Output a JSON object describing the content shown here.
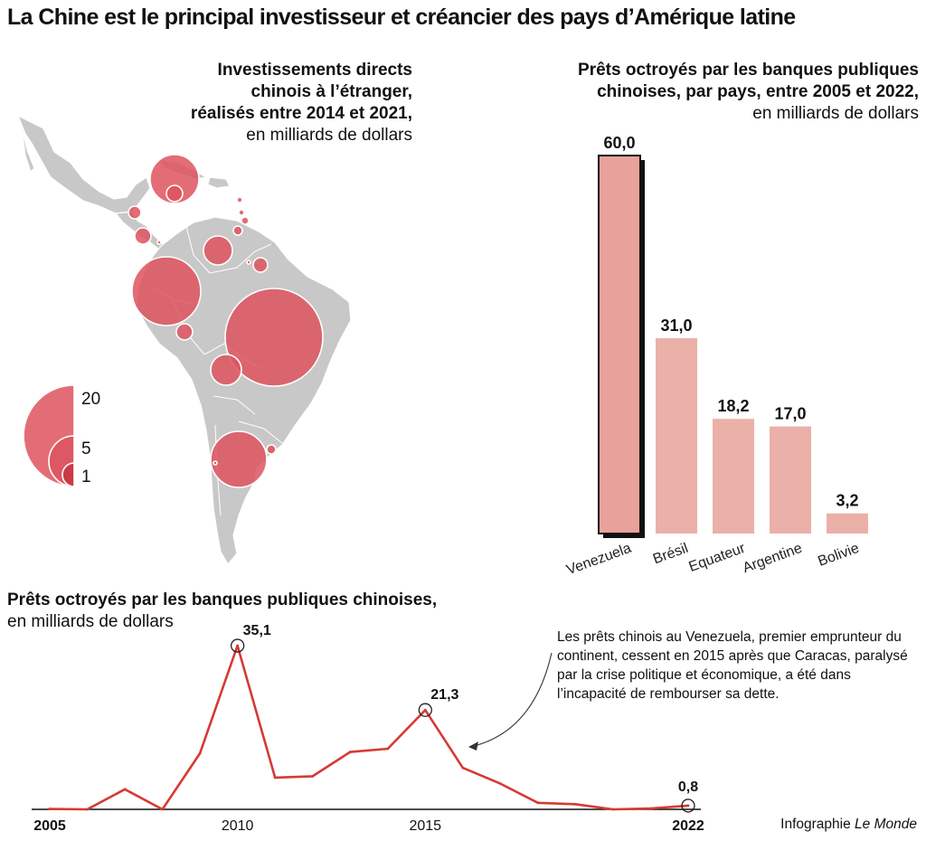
{
  "title": "La Chine est le principal investisseur et créancier des pays d’Amérique latine",
  "map": {
    "title_bold": [
      "Investissements directs",
      "chinois à l’étranger,",
      "réalisés entre 2014 et 2021,"
    ],
    "title_normal": "en milliards de dollars",
    "legend": [
      "20",
      "5",
      "1"
    ],
    "colors": {
      "land": "#c8c8c8",
      "bubble": "#dd5560"
    }
  },
  "bar_section": {
    "title_bold": [
      "Prêts octroyés par les banques publiques",
      "chinoises, par pays, entre 2005 et 2022,"
    ],
    "title_normal": "en milliards de dollars"
  },
  "line_section": {
    "title_bold": "Prêts octroyés par les banques publiques chinoises,",
    "title_normal": "en milliards de dollars",
    "annotation": "Les prêts chinois au Venezuela, premier emprunteur du continent, cessent en 2015 après que Caracas, paralysé par la crise politique et économique, a été dans l’incapacité de rembourser sa dette."
  },
  "credit": {
    "prefix": "Infographie ",
    "source": "Le Monde"
  },
  "chart_data": [
    {
      "type": "bar",
      "categories": [
        "Venezuela",
        "Brésil",
        "Equateur",
        "Argentine",
        "Bolivie"
      ],
      "values": [
        60.0,
        31.0,
        18.2,
        17.0,
        3.2
      ],
      "value_labels": [
        "60,0",
        "31,0",
        "18,2",
        "17,0",
        "3,2"
      ],
      "color": "#ebb0a8",
      "highlight_color": "#e8a29b",
      "ylim": [
        0,
        60
      ]
    },
    {
      "type": "line",
      "x": [
        2005,
        2006,
        2007,
        2008,
        2009,
        2010,
        2011,
        2012,
        2013,
        2014,
        2015,
        2016,
        2017,
        2018,
        2019,
        2020,
        2021,
        2022
      ],
      "values": [
        0.1,
        0.0,
        4.3,
        0.0,
        12.0,
        35.1,
        6.8,
        7.1,
        12.3,
        13.0,
        21.3,
        8.9,
        5.5,
        1.4,
        1.1,
        0.0,
        0.2,
        0.8
      ],
      "tick_labels": [
        "2005",
        "2010",
        "2015",
        "2022"
      ],
      "labeled_points": [
        {
          "x": 2010,
          "label": "35,1"
        },
        {
          "x": 2015,
          "label": "21,3"
        },
        {
          "x": 2022,
          "label": "0,8"
        }
      ],
      "color": "#d63a32",
      "xlim": [
        2005,
        2022
      ],
      "ylim": [
        0,
        35.1
      ]
    }
  ]
}
